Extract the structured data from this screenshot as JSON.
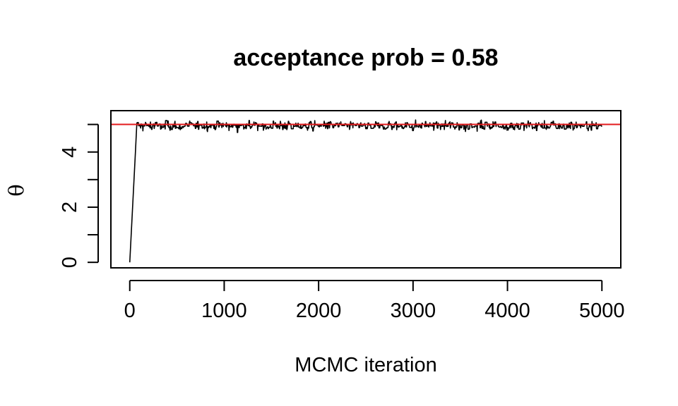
{
  "chart_data": {
    "type": "line",
    "title": "acceptance prob = 0.58",
    "xlabel": "MCMC iteration",
    "ylabel": "θ",
    "xlim": [
      -200,
      5200
    ],
    "ylim": [
      -0.2,
      5.5
    ],
    "xticks": [
      0,
      1000,
      2000,
      3000,
      4000,
      5000
    ],
    "xtick_labels": [
      "0",
      "1000",
      "2000",
      "3000",
      "4000",
      "5000"
    ],
    "yticks": [
      0,
      1,
      2,
      3,
      4,
      5
    ],
    "ytick_labels": [
      "0",
      "2",
      "4"
    ],
    "ytick_labeled_values": [
      0,
      2,
      4
    ],
    "reference_line": {
      "y": 5,
      "color": "#e31a1c"
    },
    "series": [
      {
        "color": "#000000",
        "burn_in": {
          "x": [
            0,
            60,
            75
          ],
          "y": [
            0.0,
            4.0,
            5.05
          ]
        },
        "stationary": {
          "x_start": 75,
          "x_end": 5000,
          "mean": 4.95,
          "sd": 0.09,
          "min": 4.7,
          "max": 5.2
        }
      }
    ]
  }
}
